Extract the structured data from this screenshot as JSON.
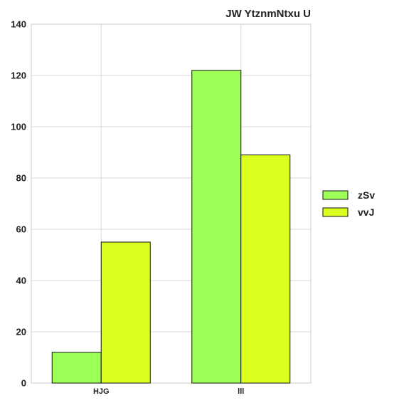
{
  "chart_data": {
    "type": "bar",
    "title": "JW YtznmNtxu U",
    "xlabel": "",
    "ylabel": "",
    "categories": [
      "HJG",
      "lll"
    ],
    "series": [
      {
        "name": "zSv",
        "values": [
          12,
          122
        ],
        "color": "#9dff57"
      },
      {
        "name": "vvJ",
        "values": [
          55,
          89
        ],
        "color": "#dbff1f"
      }
    ],
    "ylim": [
      0,
      140
    ],
    "yticks": [
      "0",
      "20",
      "40",
      "60",
      "80",
      "100",
      "120",
      "140"
    ],
    "grid": true,
    "legend_position": "right"
  }
}
